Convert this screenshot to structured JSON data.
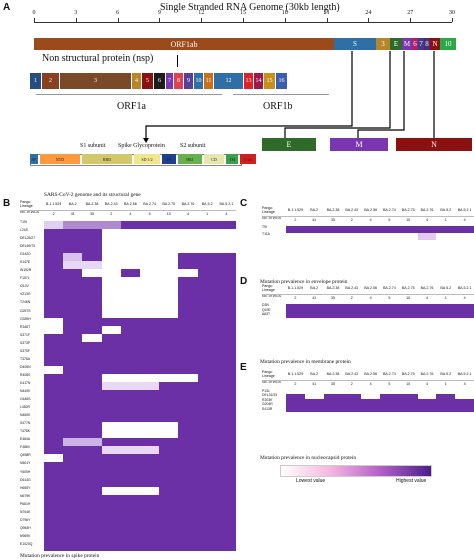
{
  "panelA": {
    "letter": "A",
    "genome_title": "Single Stranded RNA Genome (30kb length)",
    "ticks": [
      "0",
      "3",
      "6",
      "9",
      "12",
      "15",
      "18",
      "21",
      "24",
      "27",
      "30"
    ],
    "orf1ab": "ORF1ab",
    "structural_genes": [
      "S",
      "3",
      "E",
      "M",
      "6",
      "7",
      "8",
      "N",
      "10"
    ],
    "nsp_label": "Non structural protein (nsp)",
    "nsp": [
      "1",
      "2",
      "3",
      "4",
      "5",
      "6",
      "7",
      "8",
      "9",
      "10",
      "11",
      "12",
      "13",
      "14",
      "15",
      "16"
    ],
    "orf1a": "ORF1a",
    "orf1b": "ORF1b",
    "s1": "S1 subunit",
    "s2": "S2 subunit",
    "spike": "Spike Glycoprotein",
    "spike_domains": [
      "SP",
      "NTD",
      "RBD",
      "SD 1/2",
      "FP",
      "HR1",
      "CD",
      "TM",
      "C-ter"
    ],
    "E": "E",
    "M": "M",
    "N": "N",
    "caption": "SARS-CoV-2 genome and its structural gene"
  },
  "lineages": [
    "B.1.1.529",
    "BA.2",
    "BA.2.38",
    "BA.2.43",
    "BA.2.56",
    "BA.2.74",
    "BA.2.75",
    "BA.2.76",
    "BA.5.2",
    "BA.5.2.1"
  ],
  "wgs": [
    "2",
    "41",
    "35",
    "2",
    "4",
    "5",
    "10",
    "4",
    "1",
    "4"
  ],
  "header_labels": {
    "lineage": "Pango Lineage",
    "wgs": "No. of WGS"
  },
  "panelB": {
    "letter": "B",
    "caption": "Mutation prevalence in spike protein",
    "mutations": [
      "T19I",
      "L24S",
      "DEL25/27",
      "DEL69/70",
      "G142D",
      "K147E",
      "W152R",
      "F157L",
      "I210V",
      "V213G",
      "T246N",
      "G257S",
      "G339H",
      "R346T",
      "S371F",
      "S373P",
      "S375F",
      "T376A",
      "D405N",
      "R408S",
      "K417N",
      "N440K",
      "G446S",
      "L452R",
      "N460K",
      "S477N",
      "T478K",
      "E484A",
      "F486V",
      "Q498R",
      "N501Y",
      "Y505H",
      "D614G",
      "H655Y",
      "N679K",
      "P681H",
      "N764K",
      "D796Y",
      "Q954H",
      "N969K",
      "E1020Q"
    ]
  },
  "panelC": {
    "letter": "C",
    "caption": "Mutation prevalence in envelope protein",
    "mutations": [
      "T9I",
      "T11A"
    ]
  },
  "panelD": {
    "letter": "D",
    "caption": "Mutation prevalence in membrane protein",
    "mutations": [
      "D3N",
      "Q19E",
      "A63T"
    ]
  },
  "panelE": {
    "letter": "E",
    "caption": "Mutation prevalence in nucleocapsid protein",
    "mutations": [
      "P13L",
      "DEL31/33",
      "R203K",
      "G204R",
      "S413R"
    ]
  },
  "legend": {
    "low": "Lowest value",
    "high": "Highest value"
  },
  "colors": {
    "orf1ab": "#9b4a1c",
    "S": "#2f6fa6",
    "E": "#2e6b2a",
    "M": "#7a36b0",
    "N": "#8b1010",
    "heat_high": "#6b2fa6",
    "heat_low": "#ffffff"
  }
}
